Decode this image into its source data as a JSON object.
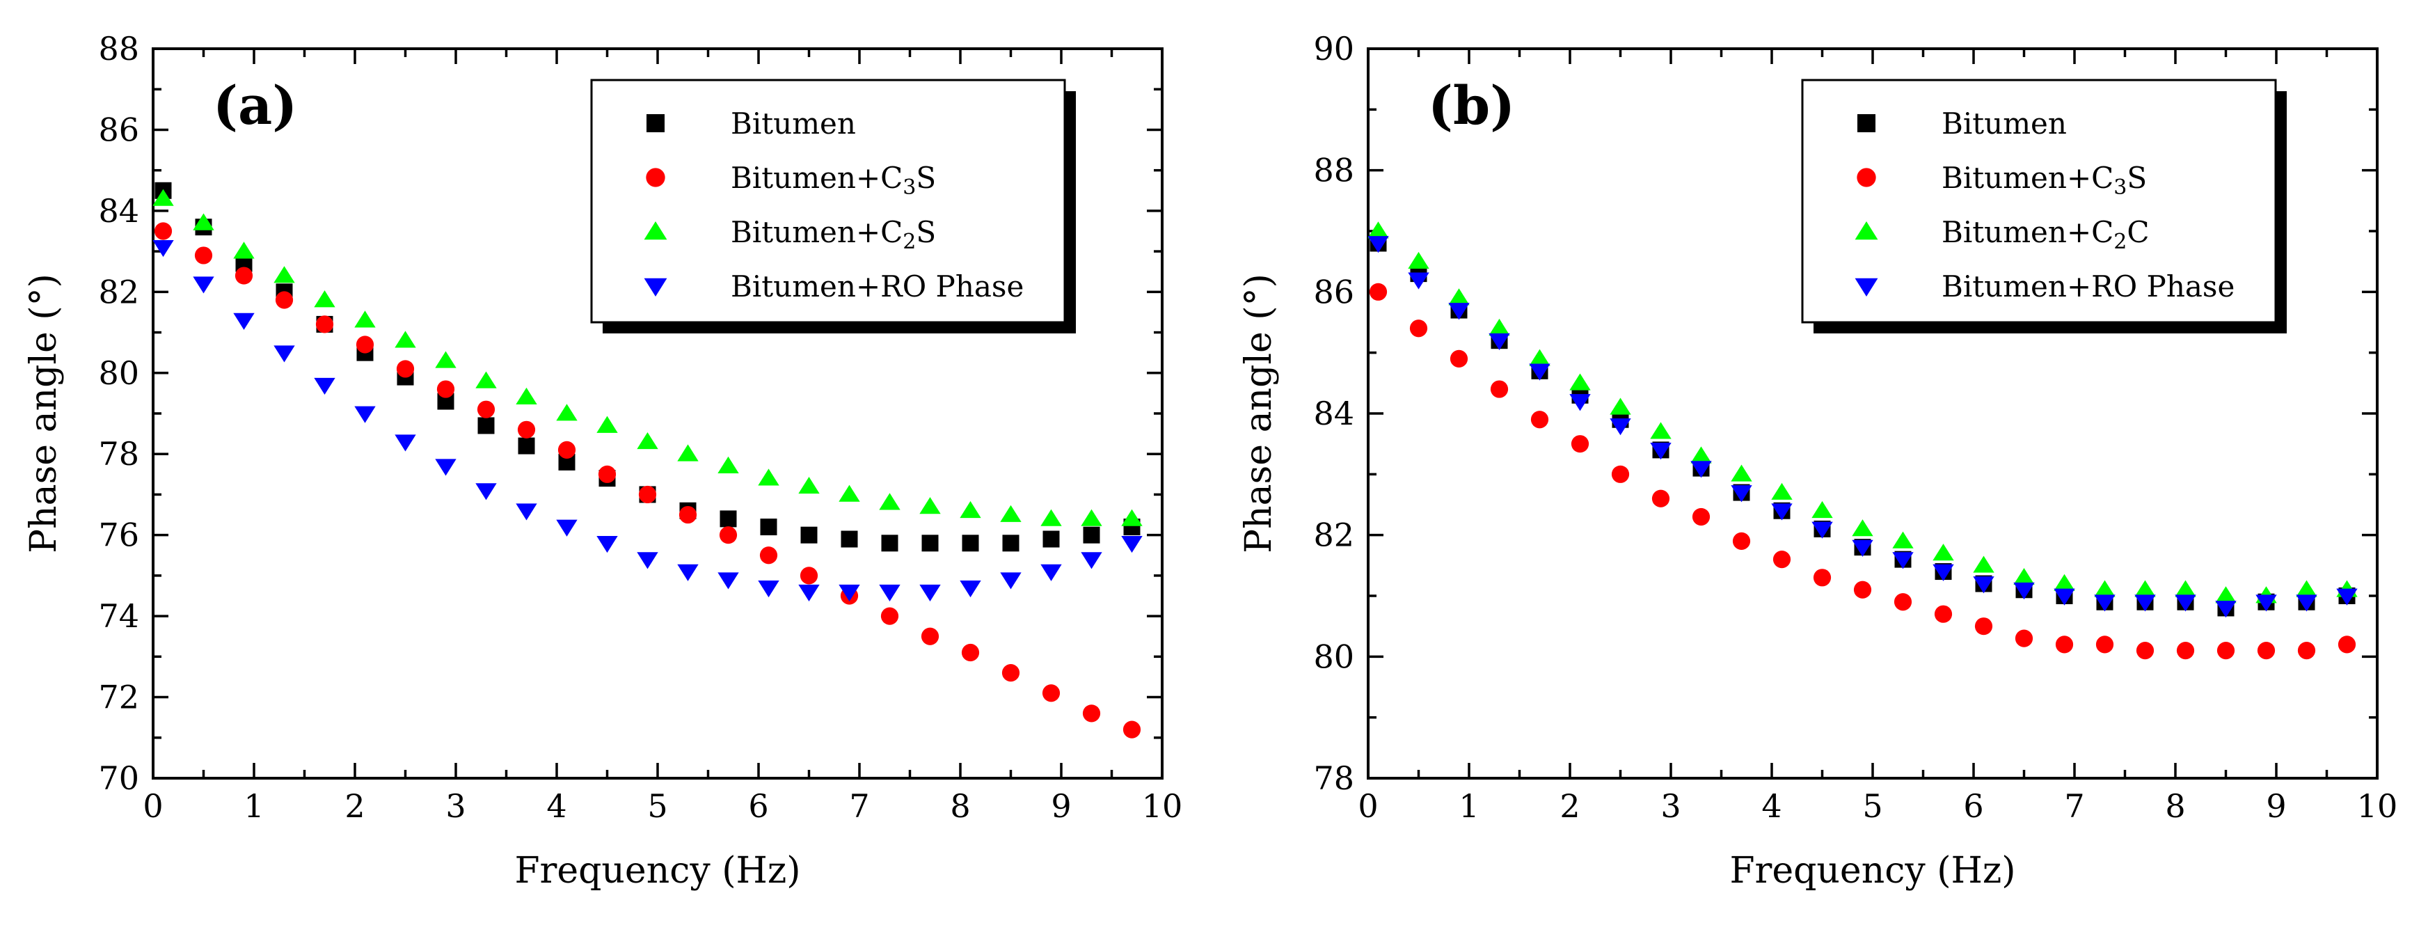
{
  "chart_data": [
    {
      "type": "scatter",
      "panel_label": "(a)",
      "xlabel": "Frequency (Hz)",
      "ylabel": "Phase angle (°)",
      "xlim": [
        0,
        10
      ],
      "ylim": [
        70,
        88
      ],
      "xticks": [
        0,
        1,
        2,
        3,
        4,
        5,
        6,
        7,
        8,
        9,
        10
      ],
      "yticks": [
        70,
        72,
        74,
        76,
        78,
        80,
        82,
        84,
        86,
        88
      ],
      "legend_position": "top-right",
      "grid": false,
      "x": [
        0.1,
        0.5,
        0.9,
        1.3,
        1.7,
        2.1,
        2.5,
        2.9,
        3.3,
        3.7,
        4.1,
        4.5,
        4.9,
        5.3,
        5.7,
        6.1,
        6.5,
        6.9,
        7.3,
        7.7,
        8.1,
        8.5,
        8.9,
        9.3,
        9.7
      ],
      "series": [
        {
          "name": "Bitumen",
          "name_main": "Bitumen",
          "name_sub": "",
          "name_tail": "",
          "marker": "square",
          "color": "#000000",
          "values": [
            84.5,
            83.6,
            82.7,
            82.0,
            81.2,
            80.5,
            79.9,
            79.3,
            78.7,
            78.2,
            77.8,
            77.4,
            77.0,
            76.6,
            76.4,
            76.2,
            76.0,
            75.9,
            75.8,
            75.8,
            75.8,
            75.8,
            75.9,
            76.0,
            76.2
          ]
        },
        {
          "name": "Bitumen+C3S",
          "name_main": "Bitumen+C",
          "name_sub": "3",
          "name_tail": "S",
          "marker": "circle",
          "color": "#ff0000",
          "values": [
            83.5,
            82.9,
            82.4,
            81.8,
            81.2,
            80.7,
            80.1,
            79.6,
            79.1,
            78.6,
            78.1,
            77.5,
            77.0,
            76.5,
            76.0,
            75.5,
            75.0,
            74.5,
            74.0,
            73.5,
            73.1,
            72.6,
            72.1,
            71.6,
            71.2
          ]
        },
        {
          "name": "Bitumen+C2S",
          "name_main": "Bitumen+C",
          "name_sub": "2",
          "name_tail": "S",
          "marker": "triangle-up",
          "color": "#00ff00",
          "values": [
            84.3,
            83.7,
            83.0,
            82.4,
            81.8,
            81.3,
            80.8,
            80.3,
            79.8,
            79.4,
            79.0,
            78.7,
            78.3,
            78.0,
            77.7,
            77.4,
            77.2,
            77.0,
            76.8,
            76.7,
            76.6,
            76.5,
            76.4,
            76.4,
            76.4
          ]
        },
        {
          "name": "Bitumen+RO Phase",
          "name_main": "Bitumen+RO Phase",
          "name_sub": "",
          "name_tail": "",
          "marker": "triangle-down",
          "color": "#0000ff",
          "values": [
            83.1,
            82.2,
            81.3,
            80.5,
            79.7,
            79.0,
            78.3,
            77.7,
            77.1,
            76.6,
            76.2,
            75.8,
            75.4,
            75.1,
            74.9,
            74.7,
            74.6,
            74.6,
            74.6,
            74.6,
            74.7,
            74.9,
            75.1,
            75.4,
            75.8
          ]
        }
      ]
    },
    {
      "type": "scatter",
      "panel_label": "(b)",
      "xlabel": "Frequency (Hz)",
      "ylabel": "Phase angle (°)",
      "xlim": [
        0,
        10
      ],
      "ylim": [
        78,
        90
      ],
      "xticks": [
        0,
        1,
        2,
        3,
        4,
        5,
        6,
        7,
        8,
        9,
        10
      ],
      "yticks": [
        78,
        80,
        82,
        84,
        86,
        88,
        90
      ],
      "legend_position": "top-right",
      "grid": false,
      "x": [
        0.1,
        0.5,
        0.9,
        1.3,
        1.7,
        2.1,
        2.5,
        2.9,
        3.3,
        3.7,
        4.1,
        4.5,
        4.9,
        5.3,
        5.7,
        6.1,
        6.5,
        6.9,
        7.3,
        7.7,
        8.1,
        8.5,
        8.9,
        9.3,
        9.7
      ],
      "series": [
        {
          "name": "Bitumen",
          "name_main": "Bitumen",
          "name_sub": "",
          "name_tail": "",
          "marker": "square",
          "color": "#000000",
          "values": [
            86.8,
            86.3,
            85.7,
            85.2,
            84.7,
            84.3,
            83.9,
            83.4,
            83.1,
            82.7,
            82.4,
            82.1,
            81.8,
            81.6,
            81.4,
            81.2,
            81.1,
            81.0,
            80.9,
            80.9,
            80.9,
            80.8,
            80.9,
            80.9,
            81.0
          ]
        },
        {
          "name": "Bitumen+C3S",
          "name_main": "Bitumen+C",
          "name_sub": "3",
          "name_tail": "S",
          "marker": "circle",
          "color": "#ff0000",
          "values": [
            86.0,
            85.4,
            84.9,
            84.4,
            83.9,
            83.5,
            83.0,
            82.6,
            82.3,
            81.9,
            81.6,
            81.3,
            81.1,
            80.9,
            80.7,
            80.5,
            80.3,
            80.2,
            80.2,
            80.1,
            80.1,
            80.1,
            80.1,
            80.1,
            80.2
          ]
        },
        {
          "name": "Bitumen+C2C",
          "name_main": "Bitumen+C",
          "name_sub": "2",
          "name_tail": "C",
          "marker": "triangle-up",
          "color": "#00ff00",
          "values": [
            87.0,
            86.5,
            85.9,
            85.4,
            84.9,
            84.5,
            84.1,
            83.7,
            83.3,
            83.0,
            82.7,
            82.4,
            82.1,
            81.9,
            81.7,
            81.5,
            81.3,
            81.2,
            81.1,
            81.1,
            81.1,
            81.0,
            81.0,
            81.1,
            81.1
          ]
        },
        {
          "name": "Bitumen+RO Phase",
          "name_main": "Bitumen+RO Phase",
          "name_sub": "",
          "name_tail": "",
          "marker": "triangle-down",
          "color": "#0000ff",
          "values": [
            86.8,
            86.2,
            85.7,
            85.2,
            84.7,
            84.2,
            83.8,
            83.4,
            83.1,
            82.7,
            82.4,
            82.1,
            81.8,
            81.6,
            81.4,
            81.2,
            81.1,
            81.0,
            80.9,
            80.9,
            80.9,
            80.8,
            80.9,
            80.9,
            81.0
          ]
        }
      ]
    }
  ]
}
